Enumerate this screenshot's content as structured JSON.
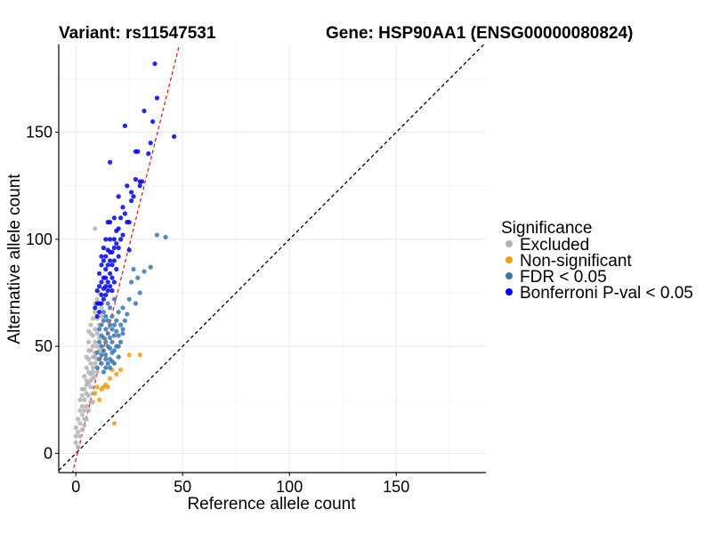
{
  "chart_data": {
    "type": "scatter",
    "title_left": "Variant: rs11547531",
    "title_right": "Gene: HSP90AA1 (ENSG00000080824)",
    "xlabel": "Reference allele count",
    "ylabel": "Alternative allele count",
    "xlim": [
      -8,
      192
    ],
    "ylim": [
      -9,
      191
    ],
    "xticks": [
      0,
      50,
      100,
      150
    ],
    "yticks": [
      0,
      50,
      100,
      150
    ],
    "grid": true,
    "legend": {
      "title": "Significance",
      "position": "right",
      "entries": [
        {
          "label": "Excluded",
          "color": "#b3b3b3"
        },
        {
          "label": "Non-significant",
          "color": "#f39c12"
        },
        {
          "label": "FDR < 0.05",
          "color": "#3a75b0"
        },
        {
          "label": "Bonferroni P-val < 0.05",
          "color": "#0000ee"
        }
      ]
    },
    "reference_lines": [
      {
        "name": "identity",
        "slope": 1,
        "intercept": 0,
        "style": "dashed",
        "color": "#000000"
      },
      {
        "name": "fitted",
        "slope": 4.0,
        "intercept": -3,
        "style": "dashed",
        "color": "#e41a1c"
      }
    ],
    "series": [
      {
        "name": "Excluded",
        "color": "#b3b3b3",
        "points": [
          [
            0,
            5
          ],
          [
            0,
            8
          ],
          [
            0,
            12
          ],
          [
            1,
            3
          ],
          [
            1,
            10
          ],
          [
            1,
            16
          ],
          [
            2,
            8
          ],
          [
            2,
            14
          ],
          [
            2,
            20
          ],
          [
            3,
            11
          ],
          [
            3,
            18
          ],
          [
            3,
            22
          ],
          [
            4,
            13
          ],
          [
            4,
            20
          ],
          [
            4,
            25
          ],
          [
            4,
            30
          ],
          [
            5,
            16
          ],
          [
            5,
            22
          ],
          [
            5,
            28
          ],
          [
            5,
            34
          ],
          [
            5,
            40
          ],
          [
            6,
            20
          ],
          [
            6,
            27
          ],
          [
            6,
            33
          ],
          [
            6,
            38
          ],
          [
            6,
            44
          ],
          [
            6,
            52
          ],
          [
            7,
            24
          ],
          [
            7,
            31
          ],
          [
            7,
            37
          ],
          [
            7,
            42
          ],
          [
            7,
            48
          ],
          [
            7,
            56
          ],
          [
            7,
            60
          ],
          [
            8,
            28
          ],
          [
            8,
            35
          ],
          [
            8,
            40
          ],
          [
            8,
            45
          ],
          [
            8,
            50
          ],
          [
            8,
            55
          ],
          [
            8,
            63
          ],
          [
            9,
            36
          ],
          [
            9,
            42
          ],
          [
            9,
            47
          ],
          [
            9,
            52
          ],
          [
            9,
            58
          ],
          [
            9,
            66
          ],
          [
            9,
            70
          ],
          [
            9,
            105
          ],
          [
            10,
            44
          ],
          [
            10,
            50
          ],
          [
            10,
            56
          ],
          [
            10,
            63
          ],
          [
            10,
            72
          ],
          [
            11,
            54
          ],
          [
            11,
            60
          ],
          [
            11,
            75
          ],
          [
            12,
            64
          ],
          [
            12,
            68
          ],
          [
            3,
            30
          ],
          [
            4,
            36
          ],
          [
            5,
            45
          ],
          [
            6,
            48
          ],
          [
            2,
            25
          ],
          [
            3,
            27
          ],
          [
            8,
            38
          ],
          [
            10,
            38
          ],
          [
            7,
            34
          ],
          [
            11,
            48
          ],
          [
            6,
            57
          ],
          [
            9,
            45
          ],
          [
            4,
            16
          ],
          [
            8,
            24
          ],
          [
            5,
            32
          ]
        ]
      },
      {
        "name": "Non-significant",
        "color": "#f39c12",
        "points": [
          [
            9,
            28
          ],
          [
            10,
            31
          ],
          [
            11,
            25
          ],
          [
            12,
            30
          ],
          [
            13,
            31
          ],
          [
            14,
            32
          ],
          [
            15,
            31
          ],
          [
            16,
            35
          ],
          [
            17,
            39
          ],
          [
            18,
            14
          ],
          [
            19,
            37
          ],
          [
            21,
            39
          ],
          [
            25,
            46
          ],
          [
            30,
            46
          ]
        ]
      },
      {
        "name": "FDR < 0.05",
        "color": "#3a75b0",
        "points": [
          [
            10,
            40
          ],
          [
            10,
            47
          ],
          [
            11,
            44
          ],
          [
            11,
            52
          ],
          [
            11,
            58
          ],
          [
            12,
            42
          ],
          [
            12,
            50
          ],
          [
            12,
            55
          ],
          [
            12,
            60
          ],
          [
            13,
            38
          ],
          [
            13,
            48
          ],
          [
            13,
            54
          ],
          [
            13,
            62
          ],
          [
            13,
            66
          ],
          [
            14,
            40
          ],
          [
            14,
            46
          ],
          [
            14,
            52
          ],
          [
            14,
            58
          ],
          [
            14,
            64
          ],
          [
            15,
            42
          ],
          [
            15,
            50
          ],
          [
            15,
            56
          ],
          [
            15,
            62
          ],
          [
            15,
            70
          ],
          [
            16,
            44
          ],
          [
            16,
            49
          ],
          [
            16,
            54
          ],
          [
            16,
            60
          ],
          [
            16,
            68
          ],
          [
            17,
            43
          ],
          [
            17,
            47
          ],
          [
            17,
            52
          ],
          [
            17,
            58
          ],
          [
            17,
            64
          ],
          [
            18,
            48
          ],
          [
            18,
            55
          ],
          [
            18,
            60
          ],
          [
            18,
            72
          ],
          [
            19,
            50
          ],
          [
            19,
            57
          ],
          [
            19,
            62
          ],
          [
            20,
            45
          ],
          [
            20,
            55
          ],
          [
            20,
            66
          ],
          [
            21,
            52
          ],
          [
            21,
            60
          ],
          [
            22,
            58
          ],
          [
            22,
            68
          ],
          [
            23,
            62
          ],
          [
            24,
            65
          ],
          [
            25,
            72
          ],
          [
            26,
            80
          ],
          [
            27,
            86
          ],
          [
            28,
            70
          ],
          [
            29,
            82
          ],
          [
            30,
            75
          ],
          [
            32,
            85
          ],
          [
            35,
            87
          ],
          [
            38,
            102
          ],
          [
            42,
            101
          ],
          [
            12,
            46
          ],
          [
            14,
            44
          ],
          [
            16,
            40
          ],
          [
            18,
            42
          ],
          [
            20,
            50
          ],
          [
            22,
            56
          ]
        ]
      },
      {
        "name": "Bonferroni P-val < 0.05",
        "color": "#0000ee",
        "points": [
          [
            9,
            68
          ],
          [
            10,
            64
          ],
          [
            10,
            70
          ],
          [
            10,
            76
          ],
          [
            11,
            66
          ],
          [
            11,
            70
          ],
          [
            11,
            78
          ],
          [
            11,
            84
          ],
          [
            12,
            70
          ],
          [
            12,
            74
          ],
          [
            12,
            80
          ],
          [
            12,
            88
          ],
          [
            13,
            72
          ],
          [
            13,
            77
          ],
          [
            13,
            82
          ],
          [
            13,
            90
          ],
          [
            13,
            96
          ],
          [
            14,
            74
          ],
          [
            14,
            78
          ],
          [
            14,
            86
          ],
          [
            14,
            92
          ],
          [
            14,
            100
          ],
          [
            15,
            76
          ],
          [
            15,
            80
          ],
          [
            15,
            88
          ],
          [
            15,
            95
          ],
          [
            15,
            108
          ],
          [
            16,
            78
          ],
          [
            16,
            84
          ],
          [
            16,
            90
          ],
          [
            16,
            100
          ],
          [
            16,
            108
          ],
          [
            17,
            76
          ],
          [
            17,
            82
          ],
          [
            17,
            88
          ],
          [
            17,
            94
          ],
          [
            18,
            80
          ],
          [
            18,
            90
          ],
          [
            18,
            96
          ],
          [
            18,
            100
          ],
          [
            18,
            110
          ],
          [
            19,
            86
          ],
          [
            19,
            98
          ],
          [
            19,
            104
          ],
          [
            20,
            92
          ],
          [
            20,
            96
          ],
          [
            20,
            120
          ],
          [
            21,
            100
          ],
          [
            21,
            110
          ],
          [
            22,
            102
          ],
          [
            22,
            115
          ],
          [
            23,
            112
          ],
          [
            23,
            153
          ],
          [
            24,
            108
          ],
          [
            24,
            125
          ],
          [
            25,
            108
          ],
          [
            26,
            118
          ],
          [
            26,
            122
          ],
          [
            27,
            120
          ],
          [
            28,
            141
          ],
          [
            28,
            128
          ],
          [
            29,
            141
          ],
          [
            30,
            127
          ],
          [
            30,
            125
          ],
          [
            31,
            127
          ],
          [
            32,
            160
          ],
          [
            34,
            140
          ],
          [
            35,
            145
          ],
          [
            36,
            155
          ],
          [
            37,
            182
          ],
          [
            38,
            166
          ],
          [
            46,
            148
          ],
          [
            16,
            136
          ],
          [
            25,
            95
          ],
          [
            20,
            105
          ],
          [
            12,
            92
          ],
          [
            14,
            82
          ],
          [
            16,
            94
          ]
        ]
      }
    ]
  }
}
